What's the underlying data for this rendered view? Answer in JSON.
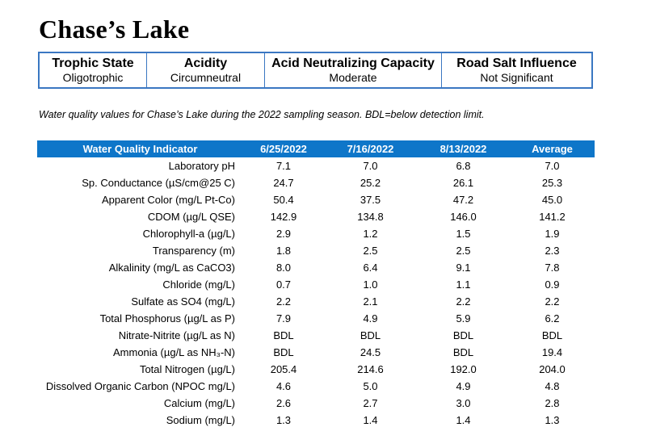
{
  "title": "Chase’s Lake",
  "summary": [
    {
      "label": "Trophic State",
      "value": "Oligotrophic"
    },
    {
      "label": "Acidity",
      "value": "Circumneutral"
    },
    {
      "label": "Acid Neutralizing Capacity",
      "value": "Moderate"
    },
    {
      "label": "Road Salt Influence",
      "value": "Not Significant"
    }
  ],
  "caption": "Water quality values for Chase’s Lake during the 2022 sampling season. BDL=below detection limit.",
  "table": {
    "headers": [
      "Water Quality Indicator",
      "6/25/2022",
      "7/16/2022",
      "8/13/2022",
      "Average"
    ],
    "rows": [
      [
        "Laboratory pH",
        "7.1",
        "7.0",
        "6.8",
        "7.0"
      ],
      [
        "Sp. Conductance (µS/cm@25 C)",
        "24.7",
        "25.2",
        "26.1",
        "25.3"
      ],
      [
        "Apparent Color (mg/L Pt-Co)",
        "50.4",
        "37.5",
        "47.2",
        "45.0"
      ],
      [
        "CDOM (µg/L QSE)",
        "142.9",
        "134.8",
        "146.0",
        "141.2"
      ],
      [
        "Chlorophyll-a (µg/L)",
        "2.9",
        "1.2",
        "1.5",
        "1.9"
      ],
      [
        "Transparency (m)",
        "1.8",
        "2.5",
        "2.5",
        "2.3"
      ],
      [
        "Alkalinity (mg/L as CaCO3)",
        "8.0",
        "6.4",
        "9.1",
        "7.8"
      ],
      [
        "Chloride (mg/L)",
        "0.7",
        "1.0",
        "1.1",
        "0.9"
      ],
      [
        "Sulfate as SO4 (mg/L)",
        "2.2",
        "2.1",
        "2.2",
        "2.2"
      ],
      [
        "Total Phosphorus (µg/L as P)",
        "7.9",
        "4.9",
        "5.9",
        "6.2"
      ],
      [
        "Nitrate-Nitrite (µg/L as N)",
        "BDL",
        "BDL",
        "BDL",
        "BDL"
      ],
      [
        "Ammonia (µg/L as NH₃-N)",
        "BDL",
        "24.5",
        "BDL",
        "19.4"
      ],
      [
        "Total Nitrogen (µg/L)",
        "205.4",
        "214.6",
        "192.0",
        "204.0"
      ],
      [
        "Dissolved Organic Carbon (NPOC mg/L)",
        "4.6",
        "5.0",
        "4.9",
        "4.8"
      ],
      [
        "Calcium (mg/L)",
        "2.6",
        "2.7",
        "3.0",
        "2.8"
      ],
      [
        "Sodium (mg/L)",
        "1.3",
        "1.4",
        "1.4",
        "1.3"
      ]
    ]
  }
}
